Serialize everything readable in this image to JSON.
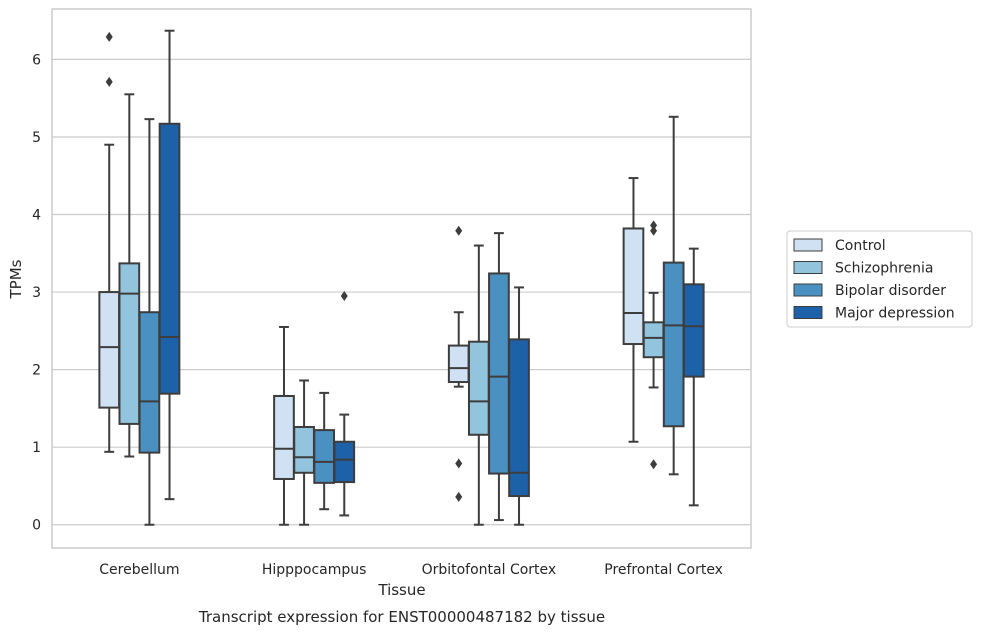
{
  "chart_data": {
    "type": "box",
    "xlabel": "Tissue",
    "ylabel": "TPMs",
    "caption": "Transcript expression for ENST00000487182 by tissue",
    "ylim": [
      -0.3,
      6.65
    ],
    "yticks": [
      0,
      1,
      2,
      3,
      4,
      5,
      6
    ],
    "grid": "horizontal",
    "legend_position": "right",
    "categories": [
      "Cerebellum",
      "Hipppocampus",
      "Orbitofontal Cortex",
      "Prefrontal Cortex"
    ],
    "series": [
      {
        "name": "Control",
        "color": "#cfe1f2",
        "boxes": [
          {
            "whisker_low": 0.94,
            "q1": 1.51,
            "median": 2.29,
            "q3": 3.0,
            "whisker_high": 4.9,
            "outliers": [
              5.71,
              6.29
            ]
          },
          {
            "whisker_low": 0.0,
            "q1": 0.59,
            "median": 0.98,
            "q3": 1.66,
            "whisker_high": 2.55,
            "outliers": []
          },
          {
            "whisker_low": 1.78,
            "q1": 1.84,
            "median": 2.02,
            "q3": 2.31,
            "whisker_high": 2.74,
            "outliers": [
              0.36,
              0.79,
              3.79
            ]
          },
          {
            "whisker_low": 1.07,
            "q1": 2.33,
            "median": 2.73,
            "q3": 3.82,
            "whisker_high": 4.47,
            "outliers": []
          }
        ]
      },
      {
        "name": "Schizophrenia",
        "color": "#93c4de",
        "boxes": [
          {
            "whisker_low": 0.88,
            "q1": 1.3,
            "median": 2.98,
            "q3": 3.37,
            "whisker_high": 5.55,
            "outliers": []
          },
          {
            "whisker_low": 0.0,
            "q1": 0.67,
            "median": 0.87,
            "q3": 1.26,
            "whisker_high": 1.86,
            "outliers": []
          },
          {
            "whisker_low": 0.0,
            "q1": 1.16,
            "median": 1.59,
            "q3": 2.36,
            "whisker_high": 3.6,
            "outliers": []
          },
          {
            "whisker_low": 1.77,
            "q1": 2.16,
            "median": 2.41,
            "q3": 2.61,
            "whisker_high": 2.99,
            "outliers": [
              0.78,
              3.79,
              3.86
            ]
          }
        ]
      },
      {
        "name": "Bipolar disorder",
        "color": "#4a91c2",
        "boxes": [
          {
            "whisker_low": 0.0,
            "q1": 0.93,
            "median": 1.59,
            "q3": 2.74,
            "whisker_high": 5.23,
            "outliers": []
          },
          {
            "whisker_low": 0.2,
            "q1": 0.54,
            "median": 0.81,
            "q3": 1.22,
            "whisker_high": 1.7,
            "outliers": []
          },
          {
            "whisker_low": 0.06,
            "q1": 0.66,
            "median": 1.91,
            "q3": 3.24,
            "whisker_high": 3.76,
            "outliers": []
          },
          {
            "whisker_low": 0.65,
            "q1": 1.27,
            "median": 2.57,
            "q3": 3.38,
            "whisker_high": 5.26,
            "outliers": []
          }
        ]
      },
      {
        "name": "Major depression",
        "color": "#1d62a9",
        "boxes": [
          {
            "whisker_low": 0.33,
            "q1": 1.69,
            "median": 2.42,
            "q3": 5.17,
            "whisker_high": 6.37,
            "outliers": []
          },
          {
            "whisker_low": 0.12,
            "q1": 0.55,
            "median": 0.84,
            "q3": 1.07,
            "whisker_high": 1.42,
            "outliers": [
              2.95
            ]
          },
          {
            "whisker_low": 0.0,
            "q1": 0.37,
            "median": 0.67,
            "q3": 2.39,
            "whisker_high": 3.06,
            "outliers": []
          },
          {
            "whisker_low": 0.25,
            "q1": 1.91,
            "median": 2.56,
            "q3": 3.1,
            "whisker_high": 3.56,
            "outliers": []
          }
        ]
      }
    ]
  }
}
